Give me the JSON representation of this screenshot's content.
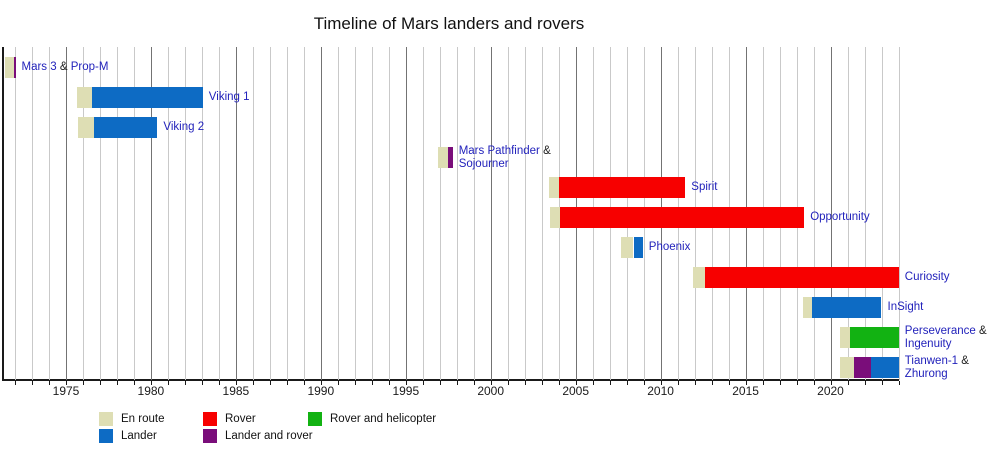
{
  "title": "Timeline of Mars landers and rovers",
  "colors": {
    "en_route": "#dedeb4",
    "rover": "#f70000",
    "lander": "#0d6bc4",
    "lander_and_rover": "#7a0d7a",
    "rover_and_helicopter": "#12b212",
    "grid_minor": "#c9c9c9",
    "grid_major": "#737373",
    "axis": "#1a1a1a",
    "mission_label_blue": "#2222bb"
  },
  "legend": {
    "rows": [
      [
        {
          "key": "en_route",
          "label": "En route"
        },
        {
          "key": "rover",
          "label": "Rover"
        },
        {
          "key": "rover_and_helicopter",
          "label": "Rover and helicopter"
        }
      ],
      [
        {
          "key": "lander",
          "label": "Lander"
        },
        {
          "key": "lander_and_rover",
          "label": "Lander and rover"
        }
      ]
    ]
  },
  "chart_data": {
    "type": "timeline",
    "title": "Timeline of Mars landers and rovers",
    "axis": {
      "x_min": 1971.3,
      "x_max": 2024.05,
      "year_labels": [
        1975,
        1980,
        1985,
        1990,
        1995,
        2000,
        2005,
        2010,
        2015,
        2020
      ],
      "gridline_interval_years": 1,
      "major_gridline_interval_years": 5,
      "grid": true
    },
    "legend_position": "bottom",
    "missions": [
      {
        "name": "Mars 3 & Prop-M",
        "label_lines": [
          "Mars 3 & Prop-M"
        ],
        "segments": [
          {
            "type": "en_route",
            "start": 1971.4,
            "end": 1971.92
          },
          {
            "type": "lander_and_rover",
            "start": 1971.92,
            "end": 1972.03
          }
        ]
      },
      {
        "name": "Viking 1",
        "label_lines": [
          "Viking 1"
        ],
        "segments": [
          {
            "type": "en_route",
            "start": 1975.63,
            "end": 1976.55
          },
          {
            "type": "lander",
            "start": 1976.55,
            "end": 1983.05
          }
        ]
      },
      {
        "name": "Viking 2",
        "label_lines": [
          "Viking 2"
        ],
        "segments": [
          {
            "type": "en_route",
            "start": 1975.69,
            "end": 1976.67
          },
          {
            "type": "lander",
            "start": 1976.67,
            "end": 1980.38
          }
        ]
      },
      {
        "name": "Mars Pathfinder & Sojourner",
        "label_lines": [
          "Mars Pathfinder &",
          "Sojourner"
        ],
        "segments": [
          {
            "type": "en_route",
            "start": 1996.92,
            "end": 1997.51
          },
          {
            "type": "lander_and_rover",
            "start": 1997.51,
            "end": 1997.76
          }
        ]
      },
      {
        "name": "Spirit",
        "label_lines": [
          "Spirit"
        ],
        "segments": [
          {
            "type": "en_route",
            "start": 2003.44,
            "end": 2004.01
          },
          {
            "type": "rover",
            "start": 2004.01,
            "end": 2011.45
          }
        ]
      },
      {
        "name": "Opportunity",
        "label_lines": [
          "Opportunity"
        ],
        "segments": [
          {
            "type": "en_route",
            "start": 2003.51,
            "end": 2004.07
          },
          {
            "type": "rover",
            "start": 2004.07,
            "end": 2018.45
          }
        ]
      },
      {
        "name": "Phoenix",
        "label_lines": [
          "Phoenix"
        ],
        "segments": [
          {
            "type": "en_route",
            "start": 2007.66,
            "end": 2008.4
          },
          {
            "type": "lander",
            "start": 2008.4,
            "end": 2008.95
          }
        ]
      },
      {
        "name": "Curiosity",
        "label_lines": [
          "Curiosity"
        ],
        "segments": [
          {
            "type": "en_route",
            "start": 2011.92,
            "end": 2012.62
          },
          {
            "type": "rover",
            "start": 2012.62,
            "end": 2024.02
          }
        ]
      },
      {
        "name": "InSight",
        "label_lines": [
          "InSight"
        ],
        "segments": [
          {
            "type": "en_route",
            "start": 2018.37,
            "end": 2018.92
          },
          {
            "type": "lander",
            "start": 2018.92,
            "end": 2023.0
          }
        ]
      },
      {
        "name": "Perseverance & Ingenuity",
        "label_lines": [
          "Perseverance &",
          "Ingenuity"
        ],
        "segments": [
          {
            "type": "en_route",
            "start": 2020.58,
            "end": 2021.14
          },
          {
            "type": "rover_and_helicopter",
            "start": 2021.14,
            "end": 2024.02
          }
        ]
      },
      {
        "name": "Tianwen-1 & Zhurong",
        "label_lines": [
          "Tianwen-1 &",
          "Zhurong"
        ],
        "segments": [
          {
            "type": "en_route",
            "start": 2020.58,
            "end": 2021.37
          },
          {
            "type": "lander_and_rover",
            "start": 2021.37,
            "end": 2022.38
          },
          {
            "type": "lander",
            "start": 2022.38,
            "end": 2024.02
          }
        ]
      }
    ]
  }
}
